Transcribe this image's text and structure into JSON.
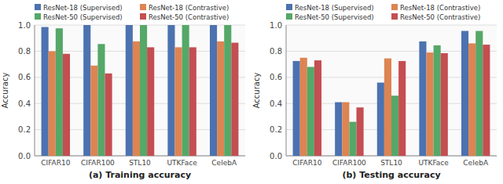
{
  "chart_data": [
    {
      "type": "bar",
      "title": "(a) Training accuracy",
      "ylabel": "Accuracy",
      "categories": [
        "CIFAR10",
        "CIFAR100",
        "STL10",
        "UTKFace",
        "CelebA"
      ],
      "series": [
        {
          "name": "ResNet-18 (Supervised)",
          "color": "#4c72b0",
          "values": [
            0.985,
            1.0,
            1.0,
            1.0,
            1.0
          ]
        },
        {
          "name": "ResNet-18 (Contrastive)",
          "color": "#dd8452",
          "values": [
            0.8,
            0.69,
            0.875,
            0.83,
            0.875
          ]
        },
        {
          "name": "ResNet-50 (Supervised)",
          "color": "#55a868",
          "values": [
            0.975,
            0.855,
            1.0,
            1.0,
            1.0
          ]
        },
        {
          "name": "ResNet-50 (Contrastive)",
          "color": "#c44e52",
          "values": [
            0.78,
            0.63,
            0.83,
            0.83,
            0.865
          ]
        }
      ],
      "ylim": [
        0.0,
        1.0
      ],
      "yticks": [
        {
          "value": 0,
          "label": "0.0"
        },
        0.2,
        0.4,
        0.6,
        0.8,
        {
          "value": 1,
          "label": "1.0"
        }
      ],
      "grid": true,
      "legend": "top"
    },
    {
      "type": "bar",
      "title": "(b) Testing accuracy",
      "ylabel": "Accuracy",
      "categories": [
        "CIFAR10",
        "CIFAR100",
        "STL10",
        "UTKFace",
        "CelebA"
      ],
      "series": [
        {
          "name": "ResNet-18 (Supervised)",
          "color": "#4c72b0",
          "values": [
            0.725,
            0.41,
            0.56,
            0.875,
            0.955
          ]
        },
        {
          "name": "ResNet-18 (Contrastive)",
          "color": "#dd8452",
          "values": [
            0.75,
            0.41,
            0.745,
            0.79,
            0.86
          ]
        },
        {
          "name": "ResNet-50 (Supervised)",
          "color": "#55a868",
          "values": [
            0.68,
            0.26,
            0.46,
            0.845,
            0.955
          ]
        },
        {
          "name": "ResNet-50 (Contrastive)",
          "color": "#c44e52",
          "values": [
            0.73,
            0.37,
            0.725,
            0.785,
            0.85
          ]
        }
      ],
      "ylim": [
        0.0,
        1.0
      ],
      "yticks": [
        {
          "value": 0,
          "label": "0.0"
        },
        0.2,
        0.4,
        0.6,
        0.8,
        {
          "value": 1,
          "label": "1.0"
        }
      ],
      "grid": true,
      "legend": "top"
    }
  ]
}
